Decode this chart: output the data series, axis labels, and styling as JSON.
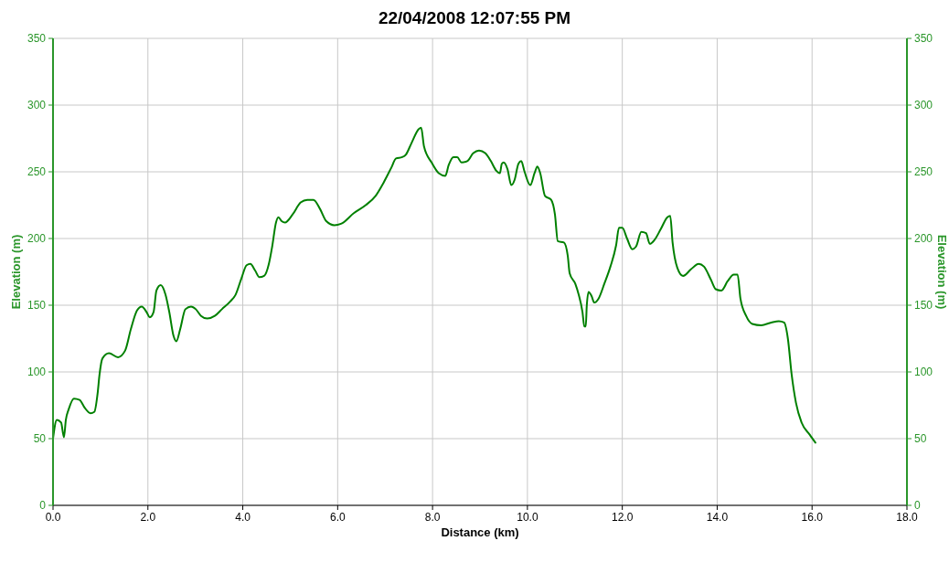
{
  "chart_data": {
    "type": "line",
    "title": "22/04/2008 12:07:55 PM",
    "xlabel": "Distance (km)",
    "ylabel": "Elevation (m)",
    "y2label": "Elevation (m)",
    "xlim": [
      0,
      18
    ],
    "xticks": [
      {
        "value": 0,
        "label": "0.0"
      },
      {
        "value": 2,
        "label": "2.0"
      },
      {
        "value": 4,
        "label": "4.0"
      },
      {
        "value": 6,
        "label": "6.0"
      },
      {
        "value": 8,
        "label": "8.0"
      },
      {
        "value": 10,
        "label": "10.0"
      },
      {
        "value": 12,
        "label": "12.0"
      },
      {
        "value": 14,
        "label": "14.0"
      },
      {
        "value": 16,
        "label": "16.0"
      },
      {
        "value": 18,
        "label": "18.0"
      }
    ],
    "ylim": [
      0,
      350
    ],
    "yticks": [
      0,
      50,
      100,
      150,
      200,
      250,
      300,
      350
    ],
    "y2lim": [
      0,
      350
    ],
    "y2ticks": [
      0,
      50,
      100,
      150,
      200,
      250,
      300,
      350
    ],
    "grid": true,
    "marker": "none",
    "line_style": "solid",
    "series": [
      {
        "color": "#008000",
        "x": [
          0,
          0.08,
          0.17,
          0.23,
          0.27,
          0.33,
          0.44,
          0.56,
          0.67,
          0.79,
          0.87,
          0.94,
          0.98,
          1.04,
          1.18,
          1.37,
          1.52,
          1.64,
          1.77,
          1.87,
          1.97,
          2.04,
          2.12,
          2.18,
          2.27,
          2.37,
          2.45,
          2.54,
          2.6,
          2.68,
          2.79,
          2.91,
          3.01,
          3.12,
          3.25,
          3.41,
          3.56,
          3.74,
          3.85,
          3.97,
          4.08,
          4.16,
          4.26,
          4.35,
          4.45,
          4.55,
          4.62,
          4.7,
          4.75,
          4.82,
          4.89,
          5.05,
          5.22,
          5.36,
          5.49,
          5.63,
          5.76,
          5.93,
          6.07,
          6.34,
          6.59,
          6.8,
          6.97,
          7.13,
          7.23,
          7.36,
          7.44,
          7.55,
          7.71,
          7.76,
          7.82,
          7.98,
          8.13,
          8.27,
          8.34,
          8.44,
          8.52,
          8.61,
          8.73,
          8.86,
          8.98,
          9.11,
          9.23,
          9.34,
          9.42,
          9.46,
          9.5,
          9.58,
          9.66,
          9.73,
          9.81,
          9.87,
          9.94,
          10.06,
          10.15,
          10.21,
          10.27,
          10.37,
          10.5,
          10.58,
          10.64,
          10.77,
          10.85,
          10.89,
          11.01,
          11.08,
          11.16,
          11.2,
          11.23,
          11.25,
          11.29,
          11.35,
          11.41,
          11.5,
          11.62,
          11.75,
          11.87,
          11.93,
          12,
          12.1,
          12.21,
          12.29,
          12.4,
          12.5,
          12.58,
          12.68,
          12.81,
          12.95,
          13.01,
          13.06,
          13.16,
          13.28,
          13.45,
          13.61,
          13.72,
          13.87,
          13.97,
          14.09,
          14.22,
          14.35,
          14.43,
          14.49,
          14.61,
          14.74,
          14.93,
          15.14,
          15.3,
          15.41,
          15.49,
          15.57,
          15.66,
          15.78,
          15.95,
          16.07
        ],
        "values": [
          50,
          64,
          62,
          51,
          64,
          72,
          80,
          79,
          73,
          69,
          70,
          84,
          98,
          110,
          114,
          111,
          116,
          132,
          146,
          149,
          145,
          141,
          145,
          161,
          165,
          158,
          145,
          127,
          123,
          132,
          147,
          149,
          147,
          142,
          140,
          142,
          147,
          153,
          158,
          170,
          180,
          181,
          176,
          171,
          172,
          181,
          194,
          212,
          216,
          213,
          212,
          218,
          227,
          229,
          229,
          222,
          213,
          210,
          211,
          219,
          225,
          232,
          242,
          253,
          260,
          261,
          263,
          271,
          282,
          283,
          269,
          257,
          249,
          247,
          255,
          261,
          261,
          257,
          258,
          264,
          266,
          264,
          258,
          251,
          249,
          256,
          257,
          252,
          240,
          244,
          256,
          258,
          250,
          240,
          249,
          254,
          249,
          232,
          229,
          218,
          198,
          197,
          187,
          174,
          166,
          158,
          145,
          134,
          134,
          149,
          160,
          157,
          152,
          155,
          166,
          179,
          195,
          208,
          208,
          200,
          192,
          194,
          205,
          204,
          196,
          199,
          207,
          216,
          217,
          197,
          178,
          172,
          177,
          181,
          179,
          169,
          162,
          161,
          168,
          173,
          173,
          155,
          142,
          136,
          135,
          137,
          138,
          137,
          125,
          98,
          77,
          62,
          53,
          47
        ]
      }
    ]
  }
}
